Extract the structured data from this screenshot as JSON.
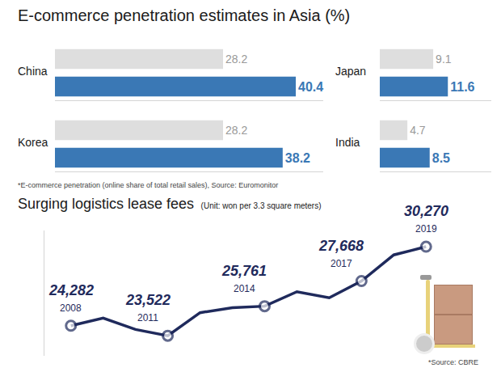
{
  "chart_data": [
    {
      "type": "bar",
      "title": "E-commerce penetration estimates in Asia (%)",
      "note": "*E-commerce penetration (online share of total retail sales), Source: Euromonitor",
      "orientation": "horizontal",
      "data_labels": true,
      "tick_labels": false,
      "grid": false,
      "colors": [
        "#dedede",
        "#3a78b5"
      ],
      "panels": [
        {
          "title": "China",
          "categories": [
            null,
            null
          ],
          "values": [
            28.2,
            40.4
          ],
          "xlim": [
            0,
            45
          ],
          "xticks": []
        },
        {
          "title": "Japan",
          "categories": [
            null,
            null
          ],
          "values": [
            9.1,
            11.6
          ],
          "xlim": [
            0,
            19
          ],
          "xticks": []
        },
        {
          "title": "Korea",
          "categories": [
            null,
            null
          ],
          "values": [
            28.2,
            38.2
          ],
          "xlim": [
            0,
            45
          ],
          "xticks": []
        },
        {
          "title": "India",
          "categories": [
            null,
            null
          ],
          "values": [
            4.7,
            8.5
          ],
          "xlim": [
            0,
            19
          ],
          "xticks": []
        }
      ]
    },
    {
      "type": "line",
      "title": "Surging logistics lease fees",
      "subtitle": "(Unit: won per 3.3 square meters)",
      "note": "*Source: CBRE",
      "categories": [
        "2008",
        null,
        null,
        "2011",
        null,
        null,
        "2014",
        null,
        null,
        "2017",
        null,
        "2019"
      ],
      "values": [
        24282,
        24860,
        24000,
        23522,
        25270,
        25650,
        25761,
        26860,
        26400,
        27668,
        29650,
        30270
      ],
      "value_labels": [
        "24,282",
        null,
        null,
        "23,522",
        null,
        null,
        "25,761",
        null,
        null,
        "27,668",
        null,
        "30,270"
      ],
      "color": "#1f2a5c",
      "marker": "circle",
      "data_labels": true,
      "tick_labels": false,
      "grid": false,
      "ylim": [
        22000,
        31500
      ],
      "yticks": []
    }
  ]
}
